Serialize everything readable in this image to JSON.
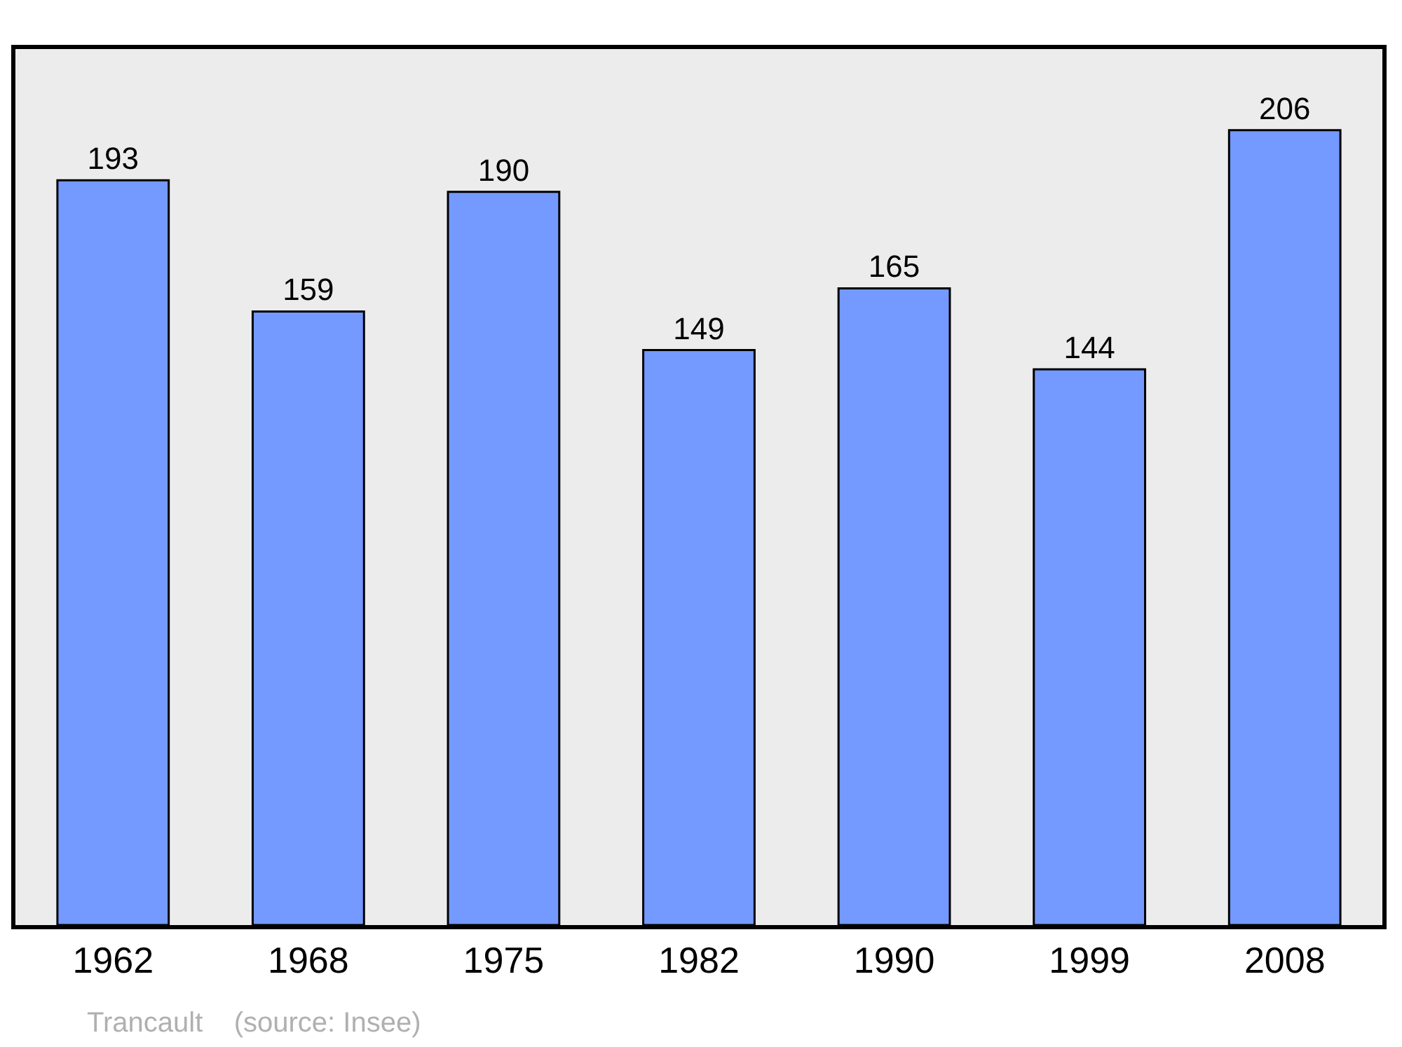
{
  "chart_data": {
    "type": "bar",
    "categories": [
      "1962",
      "1968",
      "1975",
      "1982",
      "1990",
      "1999",
      "2008"
    ],
    "values": [
      193,
      159,
      190,
      149,
      165,
      144,
      206
    ],
    "color": "#7499ff",
    "data_labels": true,
    "ylim": [
      0,
      227
    ],
    "tick_labels": "x",
    "grid": false,
    "legend": false,
    "annotations": [
      "Trancault    (source: Insee)"
    ]
  }
}
